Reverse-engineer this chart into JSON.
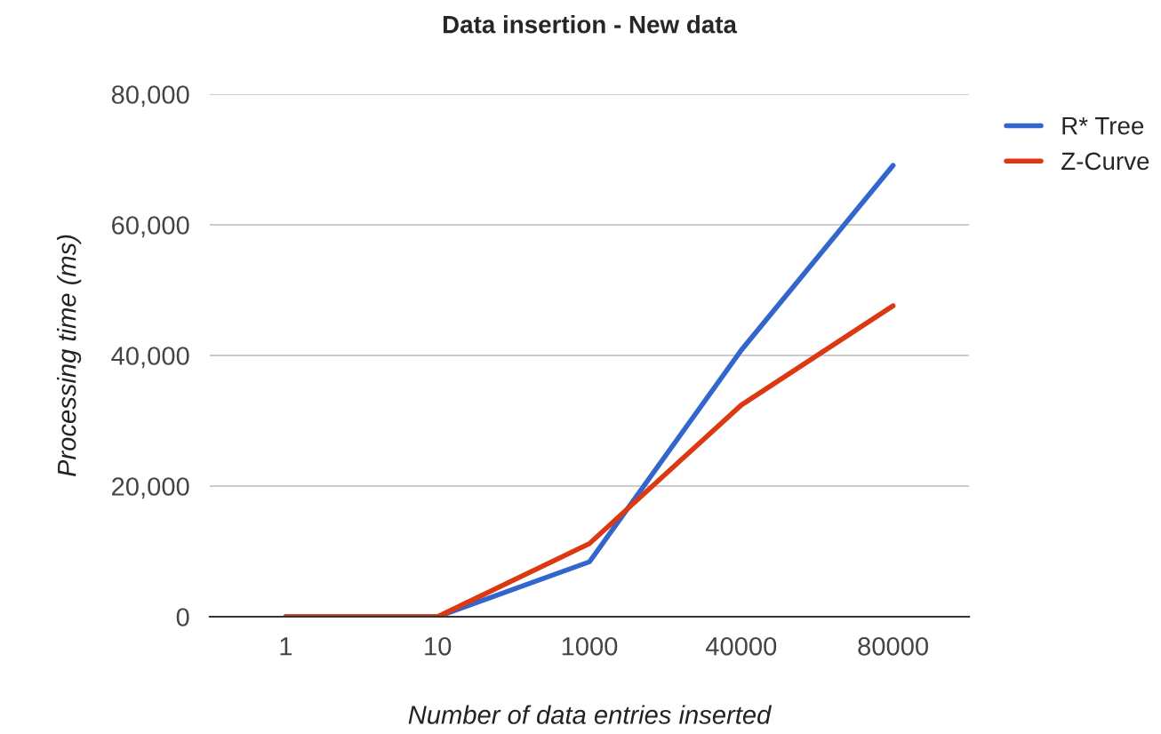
{
  "chart_data": {
    "type": "line",
    "title": "Data insertion - New data",
    "xlabel": "Number of data entries inserted",
    "ylabel": "Processing time (ms)",
    "categories": [
      "1",
      "10",
      "1000",
      "40000",
      "80000"
    ],
    "series": [
      {
        "name": "R* Tree",
        "color": "#3366cc",
        "values": [
          0,
          0,
          8400,
          40800,
          69100
        ]
      },
      {
        "name": "Z-Curve",
        "color": "#dc3912",
        "values": [
          0,
          0,
          11200,
          32400,
          47600
        ]
      }
    ],
    "ylim": [
      0,
      80000
    ],
    "yticks": [
      {
        "value": 0,
        "label": "0"
      },
      {
        "value": 20000,
        "label": "20,000"
      },
      {
        "value": 40000,
        "label": "40,000"
      },
      {
        "value": 60000,
        "label": "60,000"
      },
      {
        "value": 80000,
        "label": "80,000"
      }
    ],
    "grid": "y",
    "legend": "top right",
    "marker": "none",
    "line_style": "solid"
  }
}
